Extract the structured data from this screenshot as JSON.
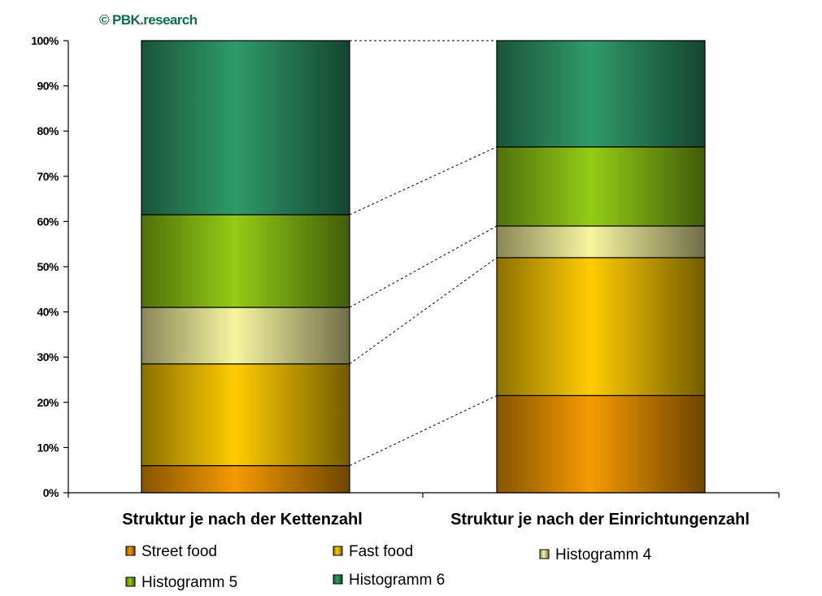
{
  "watermark": "© PBK.research",
  "chart_data": {
    "type": "bar",
    "stacked": true,
    "percent_stacked": true,
    "categories": [
      "Struktur je nach der Kettenzahl",
      "Struktur je nach der Einrichtungenzahl"
    ],
    "series": [
      {
        "name": "Street food",
        "values": [
          6,
          21.5
        ],
        "color": "#f59a00"
      },
      {
        "name": "Fast food",
        "values": [
          22.5,
          30.5
        ],
        "color": "#ffcc00"
      },
      {
        "name": "Histogramm 4",
        "values": [
          12.5,
          7
        ],
        "color": "#f7f5a0"
      },
      {
        "name": "Histogramm 5",
        "values": [
          20.5,
          17.5
        ],
        "color": "#93cc16"
      },
      {
        "name": "Histogramm 6",
        "values": [
          38.5,
          23.5
        ],
        "color": "#2f9a6a"
      }
    ],
    "ylim": [
      0,
      100
    ],
    "yticks": [
      "0%",
      "10%",
      "20%",
      "30%",
      "40%",
      "50%",
      "60%",
      "70%",
      "80%",
      "90%",
      "100%"
    ],
    "series_lines": true,
    "legend_position": "bottom"
  }
}
